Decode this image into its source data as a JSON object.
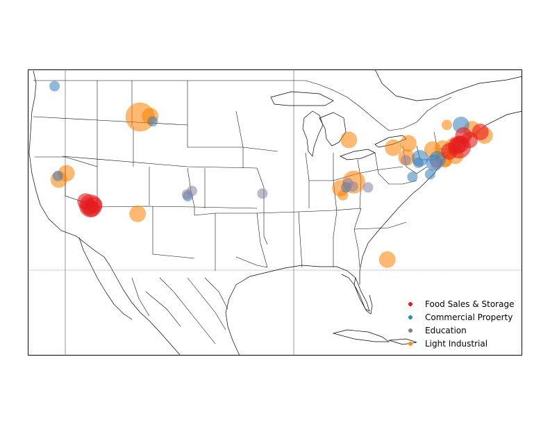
{
  "map": {
    "colors": {
      "food": "#e41a1c",
      "commercial": "#377eb8",
      "education": "#8a7fa0",
      "industrial": "#ff7f00"
    }
  },
  "legend": {
    "items": [
      {
        "label": "Food Sales & Storage",
        "color": "#e41a1c"
      },
      {
        "label": "Commercial Property",
        "color": "#2f8f9d"
      },
      {
        "label": "Education",
        "color": "#808080"
      },
      {
        "label": "Light Industrial",
        "color": "#ff8c1a"
      }
    ]
  },
  "chart_data": {
    "type": "scatter",
    "series": [
      {
        "name": "Food Sales & Storage",
        "points": [
          {
            "lon": -117.6,
            "lat": 34.1,
            "size": 2
          },
          {
            "lon": -118.0,
            "lat": 34.0,
            "size": 3
          },
          {
            "lon": -118.2,
            "lat": 33.9,
            "size": 2
          },
          {
            "lon": -117.9,
            "lat": 33.7,
            "size": 2
          },
          {
            "lon": -118.6,
            "lat": 34.5,
            "size": 2
          },
          {
            "lon": -74.2,
            "lat": 40.8,
            "size": 2
          },
          {
            "lon": -74.0,
            "lat": 40.7,
            "size": 3
          },
          {
            "lon": -73.9,
            "lat": 41.0,
            "size": 2
          },
          {
            "lon": -72.8,
            "lat": 41.5,
            "size": 2
          },
          {
            "lon": -73.5,
            "lat": 42.0,
            "size": 2
          },
          {
            "lon": -71.5,
            "lat": 42.4,
            "size": 2
          },
          {
            "lon": -75.2,
            "lat": 40.2,
            "size": 2
          }
        ]
      },
      {
        "name": "Commercial Property",
        "points": [
          {
            "lon": -122.3,
            "lat": 47.6,
            "size": 1
          },
          {
            "lon": -121.9,
            "lat": 37.4,
            "size": 1
          },
          {
            "lon": -106.4,
            "lat": 35.1,
            "size": 1
          },
          {
            "lon": -73.8,
            "lat": 43.2,
            "size": 2
          },
          {
            "lon": -78.7,
            "lat": 39.4,
            "size": 2
          },
          {
            "lon": -77.0,
            "lat": 38.9,
            "size": 2
          },
          {
            "lon": -76.6,
            "lat": 39.3,
            "size": 2
          },
          {
            "lon": -79.6,
            "lat": 37.3,
            "size": 1
          },
          {
            "lon": -78.9,
            "lat": 38.9,
            "size": 1
          },
          {
            "lon": -77.5,
            "lat": 37.6,
            "size": 1
          },
          {
            "lon": -87.5,
            "lat": 36.1,
            "size": 1
          },
          {
            "lon": -110.6,
            "lat": 43.6,
            "size": 1
          }
        ]
      },
      {
        "name": "Education",
        "points": [
          {
            "lon": -106.5,
            "lat": 35.3,
            "size": 1
          },
          {
            "lon": -105.9,
            "lat": 35.7,
            "size": 1
          },
          {
            "lon": -97.5,
            "lat": 35.4,
            "size": 1
          },
          {
            "lon": -87.3,
            "lat": 36.6,
            "size": 1
          },
          {
            "lon": -86.7,
            "lat": 36.2,
            "size": 1
          },
          {
            "lon": -84.9,
            "lat": 36.1,
            "size": 1
          },
          {
            "lon": -80.4,
            "lat": 39.2,
            "size": 1
          },
          {
            "lon": -76.8,
            "lat": 38.7,
            "size": 1
          }
        ]
      },
      {
        "name": "Light Industrial",
        "points": [
          {
            "lon": -112.1,
            "lat": 44.1,
            "size": 4
          },
          {
            "lon": -110.9,
            "lat": 44.2,
            "size": 2
          },
          {
            "lon": -121.8,
            "lat": 37.0,
            "size": 2
          },
          {
            "lon": -120.9,
            "lat": 37.7,
            "size": 2
          },
          {
            "lon": -112.4,
            "lat": 33.1,
            "size": 2
          },
          {
            "lon": -87.2,
            "lat": 41.5,
            "size": 2
          },
          {
            "lon": -81.9,
            "lat": 40.6,
            "size": 2
          },
          {
            "lon": -80.1,
            "lat": 41.1,
            "size": 2
          },
          {
            "lon": -77.2,
            "lat": 40.4,
            "size": 2
          },
          {
            "lon": -86.6,
            "lat": 36.7,
            "size": 3
          },
          {
            "lon": -88.2,
            "lat": 36.0,
            "size": 2
          },
          {
            "lon": -87.9,
            "lat": 35.2,
            "size": 1
          },
          {
            "lon": -80.3,
            "lat": 39.5,
            "size": 2
          },
          {
            "lon": -76.0,
            "lat": 40.5,
            "size": 2
          },
          {
            "lon": -74.7,
            "lat": 40.8,
            "size": 2
          },
          {
            "lon": -74.5,
            "lat": 39.7,
            "size": 2
          },
          {
            "lon": -72.5,
            "lat": 42.7,
            "size": 2
          },
          {
            "lon": -71.0,
            "lat": 42.0,
            "size": 2
          },
          {
            "lon": -75.5,
            "lat": 43.2,
            "size": 1
          },
          {
            "lon": -82.6,
            "lat": 27.9,
            "size": 2
          },
          {
            "lon": -75.8,
            "lat": 39.3,
            "size": 2
          },
          {
            "lon": -75.6,
            "lat": 39.0,
            "size": 1
          }
        ]
      }
    ],
    "legend_position": "bottom-right"
  }
}
